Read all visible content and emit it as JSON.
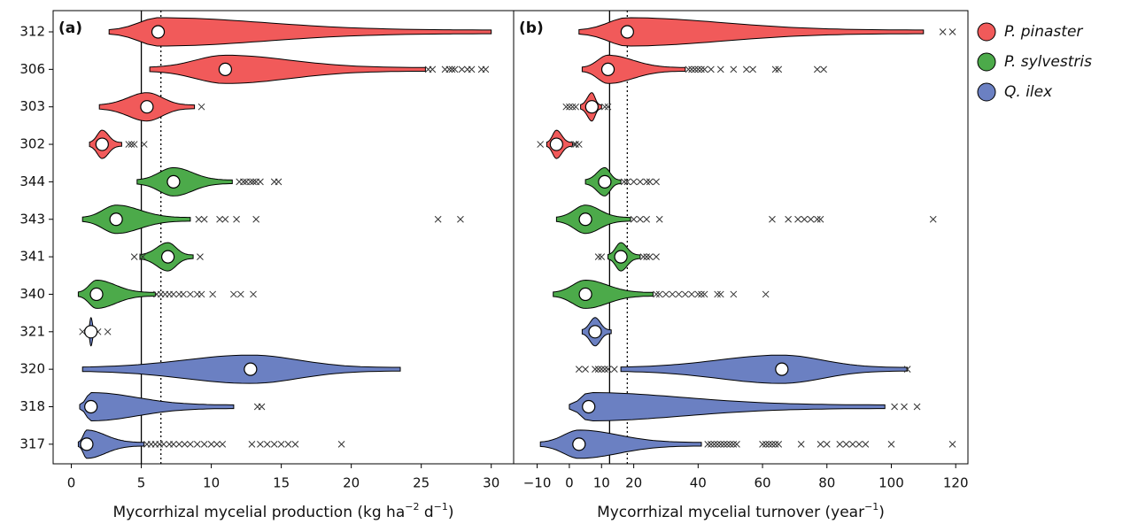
{
  "legend": [
    {
      "name": "P. pinaster",
      "color": "#f15a5a"
    },
    {
      "name": "P. sylvestris",
      "color": "#4caa4a"
    },
    {
      "name": "Q. ilex",
      "color": "#6b80c2"
    }
  ],
  "chart_data": [
    {
      "type": "violin",
      "label": "(a)",
      "xlabel": [
        "Mycorrhizal mycelial production (kg ha",
        "−2",
        " d",
        "−1",
        ")"
      ],
      "categories": [
        "312",
        "306",
        "303",
        "302",
        "344",
        "343",
        "341",
        "340",
        "321",
        "320",
        "318",
        "317"
      ],
      "xlim": [
        -1.3,
        31.6
      ],
      "xticks": [
        0,
        5,
        10,
        15,
        20,
        25,
        30
      ],
      "vlines": [
        {
          "value": 5,
          "style": "solid"
        },
        {
          "value": 6.4,
          "style": "dotted"
        }
      ],
      "series": [
        {
          "median": [
            6.2,
            11,
            5.4,
            2.2
          ],
          "min": [
            2.7,
            5.6,
            2,
            1.3
          ],
          "max": [
            30,
            25.3,
            8.8,
            3.6
          ],
          "outliers": [
            [],
            [
              25.5,
              25.8,
              26.7,
              27,
              27.2,
              27.4,
              27.9,
              28.3,
              28.6,
              29.3,
              29.6
            ],
            [
              9.3
            ],
            [
              4.1,
              4.3,
              4.5,
              5.2
            ]
          ]
        },
        {
          "median": [
            7.3,
            3.2,
            6.9,
            1.8
          ],
          "min": [
            4.7,
            0.8,
            4.9,
            0.5
          ],
          "max": [
            11.5,
            8.5,
            8.7,
            6
          ],
          "outliers": [
            [
              12,
              12.3,
              12.5,
              12.8,
              13,
              13.2,
              13.5,
              14.5,
              14.8
            ],
            [
              9.1,
              9.5,
              10.6,
              11,
              11.8,
              13.2,
              26.2,
              27.8
            ],
            [
              4.5,
              5.1,
              9.2
            ],
            [
              6.1,
              6.4,
              6.7,
              7,
              7.3,
              7.7,
              8,
              8.5,
              9,
              9.3,
              10.1,
              11.6,
              12.1,
              13
            ]
          ]
        },
        {
          "median": [
            1.4,
            12.8,
            1.4,
            1.1
          ],
          "min": [
            1.2,
            0.8,
            0.6,
            0.5
          ],
          "max": [
            1.7,
            23.5,
            11.6,
            5.2
          ],
          "outliers": [
            [
              0.8,
              1.9,
              2.6
            ],
            [],
            [
              13.3,
              13.6
            ],
            [
              5.4,
              5.7,
              6,
              6.3,
              6.6,
              7,
              7.3,
              7.7,
              8.1,
              8.5,
              9,
              9.5,
              10,
              10.4,
              10.8,
              12.9,
              13.5,
              14,
              14.5,
              15,
              15.5,
              16,
              19.3
            ]
          ]
        }
      ]
    },
    {
      "type": "violin",
      "label": "(b)",
      "xlabel": [
        "Mycorrhizal mycelial turnover (year",
        "−1",
        ")"
      ],
      "xlim": [
        -17.3,
        123.8
      ],
      "xticks": [
        {
          "value": -10,
          "label": "−10"
        },
        0,
        10,
        20,
        40,
        60,
        80,
        100,
        120
      ],
      "vlines": [
        {
          "value": 12.5,
          "style": "solid"
        },
        {
          "value": 18,
          "style": "dotted"
        }
      ],
      "series": [
        {
          "median": [
            18,
            12,
            7,
            -4
          ],
          "min": [
            3,
            4,
            3.5,
            -7
          ],
          "max": [
            110,
            36,
            10,
            1
          ],
          "outliers": [
            [
              116,
              119
            ],
            [
              37,
              38,
              39,
              40,
              41,
              42,
              44,
              47,
              51,
              55,
              57,
              64,
              65,
              77,
              79
            ],
            [
              -1,
              0,
              1,
              2,
              11,
              12
            ],
            [
              -9,
              1.5,
              2,
              3
            ]
          ]
        },
        {
          "median": [
            11,
            5,
            16,
            5
          ],
          "min": [
            5,
            -4,
            12,
            -5
          ],
          "max": [
            16,
            19,
            22,
            26
          ],
          "outliers": [
            [
              17,
              18,
              20,
              22,
              24,
              25,
              27
            ],
            [
              20,
              22,
              24,
              28,
              63,
              68,
              71,
              73,
              75,
              77,
              78,
              113
            ],
            [
              9,
              10,
              23,
              24,
              25,
              27
            ],
            [
              27,
              28,
              30,
              32,
              34,
              36,
              38,
              40,
              41,
              42,
              46,
              47,
              51,
              61
            ]
          ]
        },
        {
          "median": [
            8,
            66,
            6,
            3
          ],
          "min": [
            4,
            16,
            0,
            -9
          ],
          "max": [
            13,
            105,
            98,
            41
          ],
          "outliers": [
            [],
            [
              3,
              5,
              8,
              9,
              10,
              11,
              12,
              14,
              105
            ],
            [
              101,
              104,
              108
            ],
            [
              43,
              44,
              45,
              46,
              47,
              48,
              49,
              50,
              51,
              52,
              60,
              61,
              62,
              63,
              64,
              65,
              72,
              78,
              80,
              84,
              86,
              88,
              90,
              92,
              100,
              119
            ]
          ]
        }
      ]
    }
  ]
}
